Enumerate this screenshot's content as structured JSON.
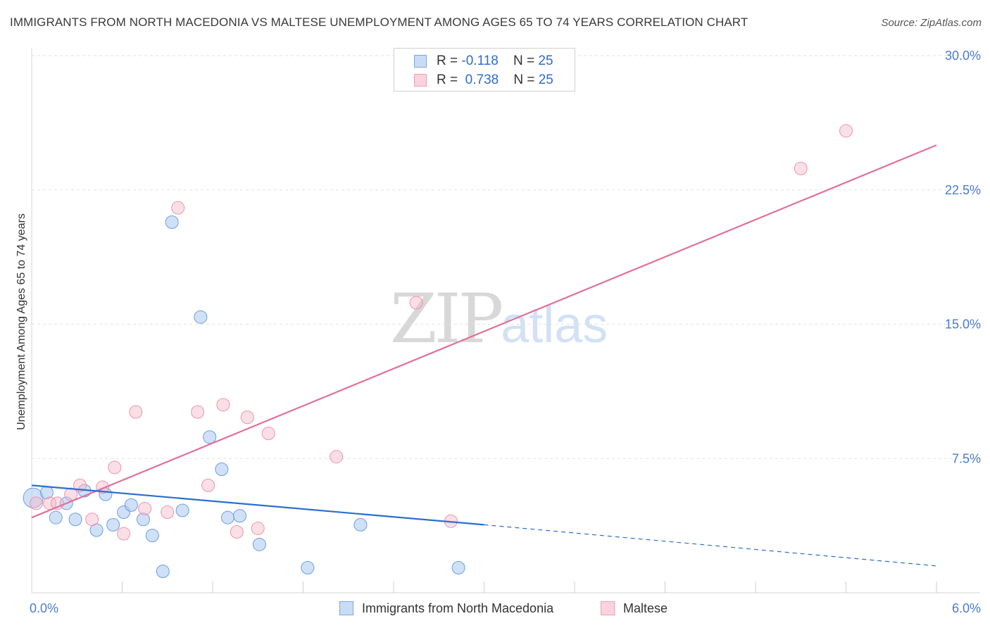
{
  "header": {
    "title": "IMMIGRANTS FROM NORTH MACEDONIA VS MALTESE UNEMPLOYMENT AMONG AGES 65 TO 74 YEARS CORRELATION CHART",
    "source": "Source: ZipAtlas.com"
  },
  "watermark": {
    "zip": "ZIP",
    "atlas": "atlas"
  },
  "legend": {
    "rows": [
      {
        "r_label": "R =",
        "r_value": "-0.118",
        "n_label": "N =",
        "n_value": "25",
        "color": "#aac8f0"
      },
      {
        "r_label": "R =",
        "r_value": "0.738",
        "n_label": "N =",
        "n_value": "25",
        "color": "#f6b8c9"
      }
    ]
  },
  "bottom_legend": {
    "series1": "Immigrants from North Macedonia",
    "series2": "Maltese"
  },
  "colors": {
    "blue_fill": "#aac8f0",
    "blue_stroke": "#6b9ee0",
    "blue_line": "#2a6fcf",
    "pink_fill": "#f6b8c9",
    "pink_stroke": "#ec93ad",
    "pink_line": "#e0709a",
    "tick_text": "#4a7bd0"
  },
  "chart_data": {
    "type": "scatter",
    "title": "IMMIGRANTS FROM NORTH MACEDONIA VS MALTESE UNEMPLOYMENT AMONG AGES 65 TO 74 YEARS CORRELATION CHART",
    "xlabel": "",
    "ylabel": "Unemployment Among Ages 65 to 74 years",
    "xlim": [
      0,
      6
    ],
    "ylim": [
      0,
      30
    ],
    "x_tick_labels": [
      {
        "value": 0,
        "label": "0.0%"
      },
      {
        "value": 6,
        "label": "6.0%"
      }
    ],
    "y_tick_labels": [
      {
        "value": 7.5,
        "label": "7.5%"
      },
      {
        "value": 15,
        "label": "15.0%"
      },
      {
        "value": 22.5,
        "label": "22.5%"
      },
      {
        "value": 30,
        "label": "30.0%"
      }
    ],
    "series": [
      {
        "name": "Immigrants from North Macedonia",
        "R": -0.118,
        "N": 25,
        "points": [
          [
            0.01,
            5.3
          ],
          [
            0.1,
            5.6
          ],
          [
            0.16,
            4.2
          ],
          [
            0.23,
            5.0
          ],
          [
            0.29,
            4.1
          ],
          [
            0.35,
            5.7
          ],
          [
            0.43,
            3.5
          ],
          [
            0.49,
            5.5
          ],
          [
            0.54,
            3.8
          ],
          [
            0.61,
            4.5
          ],
          [
            0.66,
            4.9
          ],
          [
            0.74,
            4.1
          ],
          [
            0.8,
            3.2
          ],
          [
            0.87,
            1.2
          ],
          [
            0.93,
            20.7
          ],
          [
            1.0,
            4.6
          ],
          [
            1.12,
            15.4
          ],
          [
            1.18,
            8.7
          ],
          [
            1.26,
            6.9
          ],
          [
            1.3,
            4.2
          ],
          [
            1.38,
            4.3
          ],
          [
            1.51,
            2.7
          ],
          [
            1.83,
            1.4
          ],
          [
            2.18,
            3.8
          ],
          [
            2.83,
            1.4
          ]
        ],
        "trend": {
          "x_start": 0,
          "y_start": 6.0,
          "x_end": 3.0,
          "y_end": 3.8,
          "dash_x_end": 6.0,
          "dash_y_end": 1.5
        }
      },
      {
        "name": "Maltese",
        "R": 0.738,
        "N": 25,
        "points": [
          [
            0.03,
            5.0
          ],
          [
            0.12,
            5.0
          ],
          [
            0.17,
            5.0
          ],
          [
            0.26,
            5.5
          ],
          [
            0.32,
            6.0
          ],
          [
            0.4,
            4.1
          ],
          [
            0.47,
            5.9
          ],
          [
            0.55,
            7.0
          ],
          [
            0.61,
            3.3
          ],
          [
            0.69,
            10.1
          ],
          [
            0.75,
            4.7
          ],
          [
            0.9,
            4.5
          ],
          [
            0.97,
            21.5
          ],
          [
            1.1,
            10.1
          ],
          [
            1.17,
            6.0
          ],
          [
            1.27,
            10.5
          ],
          [
            1.36,
            3.4
          ],
          [
            1.43,
            9.8
          ],
          [
            1.5,
            3.6
          ],
          [
            1.57,
            8.9
          ],
          [
            2.02,
            7.6
          ],
          [
            2.55,
            16.2
          ],
          [
            2.78,
            4.0
          ],
          [
            5.1,
            23.7
          ],
          [
            5.4,
            25.8
          ]
        ],
        "trend": {
          "x_start": 0,
          "y_start": 4.2,
          "x_end": 6.0,
          "y_end": 25.0
        }
      }
    ]
  }
}
